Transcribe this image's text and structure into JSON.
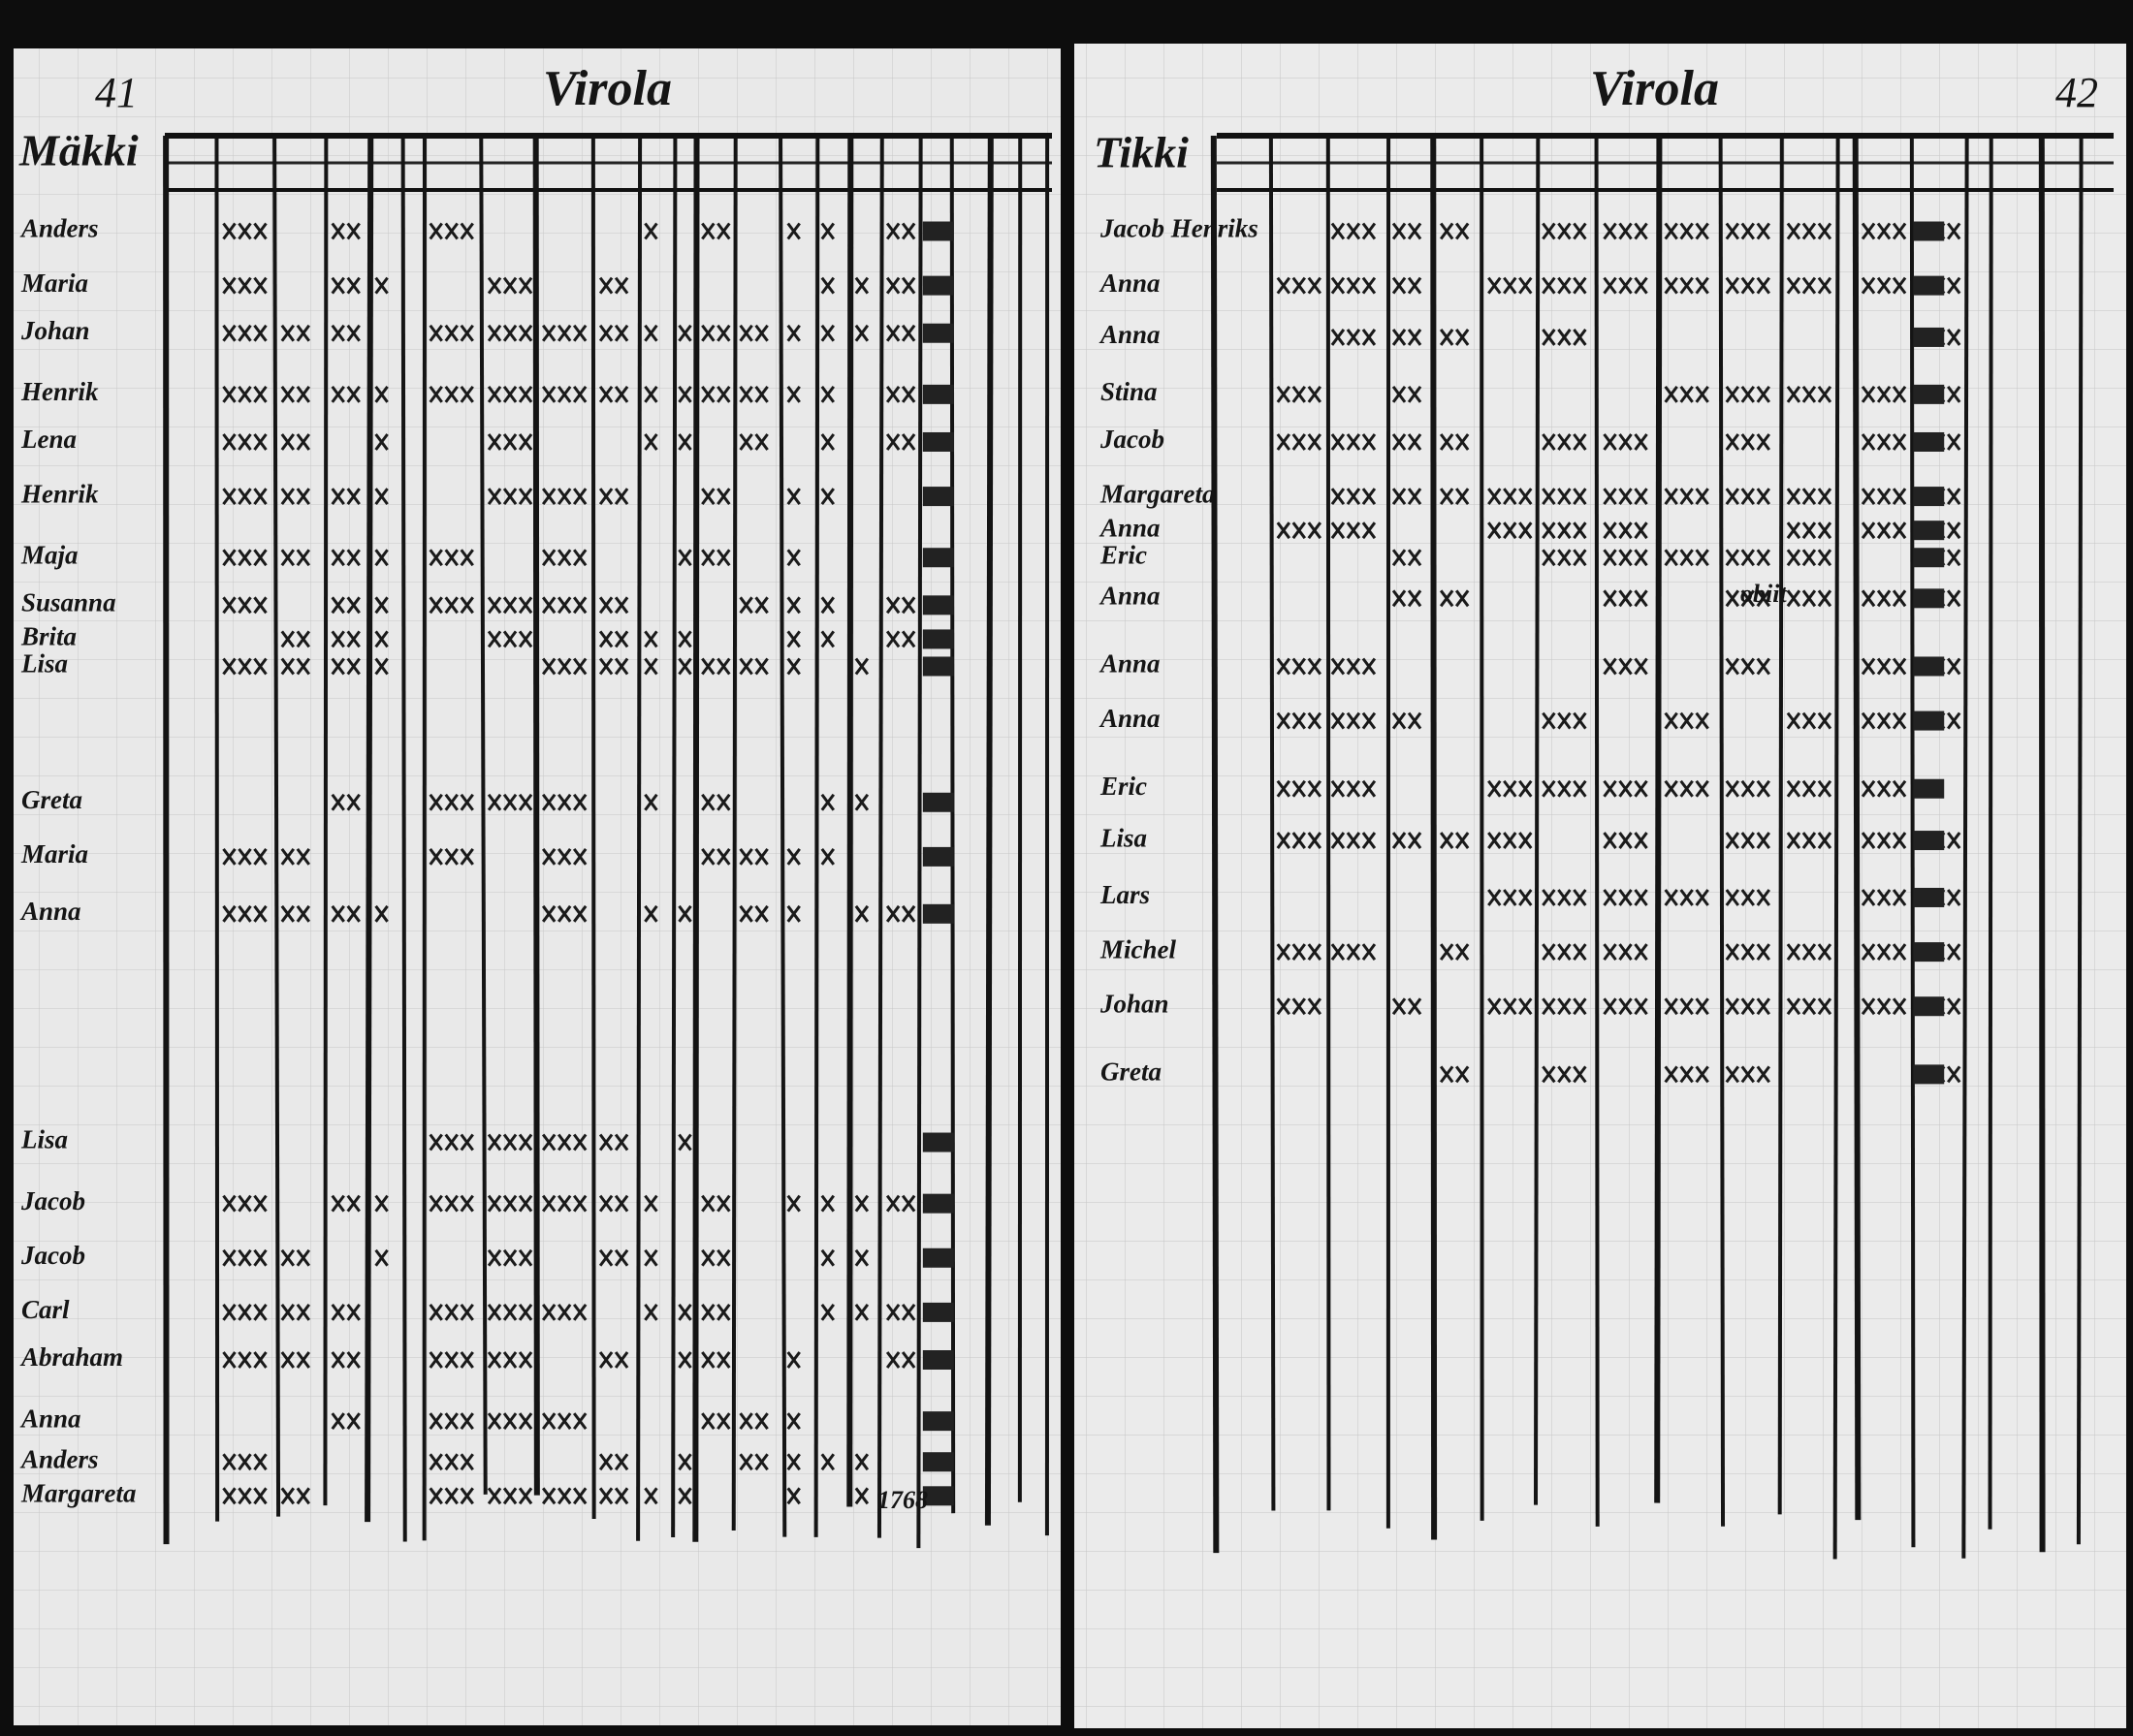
{
  "left_page": {
    "page_number": "41",
    "title": "Virola",
    "farm": "Mäkki",
    "rows": [
      "Anders",
      "Maria",
      "Johan",
      "Henrik",
      "Lena",
      "Henrik",
      "Maja",
      "Susanna",
      "Brita",
      "Lisa",
      "Greta",
      "Maria",
      "Anna",
      "Lisa",
      "Jacob",
      "Jacob",
      "Carl",
      "Abraham",
      "Anna",
      "Anders",
      "Margareta"
    ],
    "notes": [
      "1768"
    ]
  },
  "right_page": {
    "page_number": "42",
    "title": "Virola",
    "farm": "Tikki",
    "rows": [
      "Jacob Henriks",
      "Anna",
      "Anna",
      "Stina",
      "Jacob",
      "Margareta",
      "Anna",
      "Eric",
      "Anna",
      "Anna",
      "Anna",
      "Eric",
      "Lisa",
      "Lars",
      "Michel",
      "Johan",
      "Greta"
    ],
    "notes": [
      "obiit"
    ]
  }
}
